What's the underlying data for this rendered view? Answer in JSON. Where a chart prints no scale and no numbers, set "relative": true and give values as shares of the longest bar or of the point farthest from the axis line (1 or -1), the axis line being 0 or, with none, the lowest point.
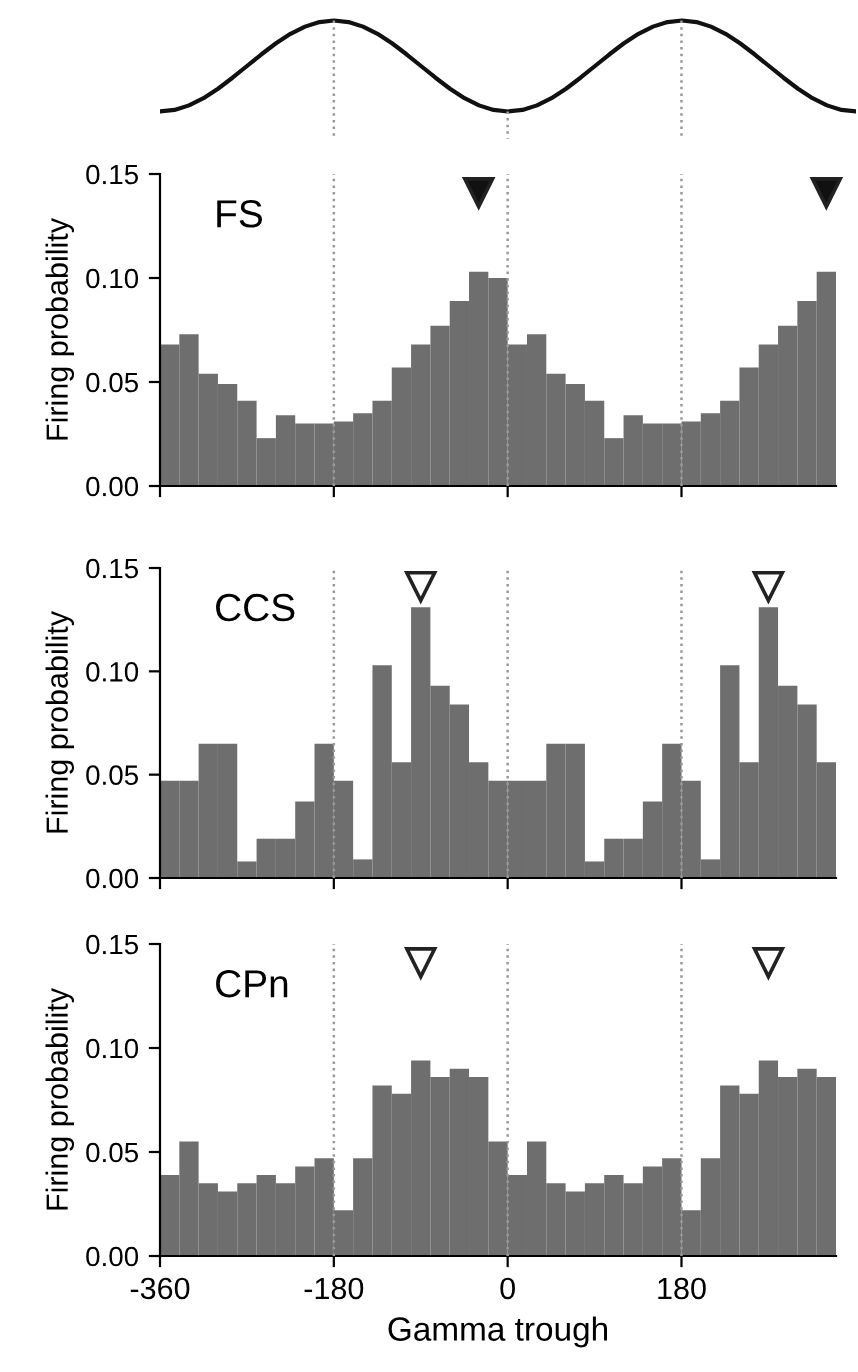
{
  "chart_data": [
    {
      "type": "line",
      "relative": true,
      "color": "#111111",
      "categories": [
        null,
        null,
        null,
        null,
        null,
        null,
        null,
        null,
        null,
        null,
        null,
        null,
        null,
        null,
        null,
        null,
        null,
        null,
        null,
        null,
        null,
        null,
        null,
        null,
        null,
        null,
        null,
        null,
        null,
        null,
        null,
        null,
        null,
        null,
        null,
        null,
        null,
        null,
        null,
        null,
        null,
        null,
        null,
        null,
        null,
        null,
        null,
        null,
        null
      ],
      "values": [
        0,
        0.017,
        0.067,
        0.146,
        0.25,
        0.371,
        0.5,
        0.629,
        0.75,
        0.854,
        0.933,
        0.983,
        1,
        0.983,
        0.933,
        0.854,
        0.75,
        0.629,
        0.5,
        0.371,
        0.25,
        0.146,
        0.067,
        0.017,
        0,
        0.017,
        0.067,
        0.146,
        0.25,
        0.371,
        0.5,
        0.629,
        0.75,
        0.854,
        0.933,
        0.983,
        1,
        0.983,
        0.933,
        0.854,
        0.75,
        0.629,
        0.5,
        0.371,
        0.25,
        0.146,
        0.067,
        0.017,
        0
      ]
    },
    {
      "type": "histogram",
      "title": "FS",
      "ylabel": "Firing probability",
      "color": "#6e6e6e",
      "bins": [
        -360,
        -340,
        -320,
        -300,
        -280,
        -260,
        -240,
        -220,
        -200,
        -180,
        -160,
        -140,
        -120,
        -100,
        -80,
        -60,
        -40,
        -20,
        0,
        20,
        40,
        60,
        80,
        100,
        120,
        140,
        160,
        180,
        200,
        220,
        240,
        260,
        280,
        300,
        320,
        340
      ],
      "values": [
        0.068,
        0.073,
        0.054,
        0.049,
        0.041,
        0.023,
        0.034,
        0.03,
        0.03,
        0.031,
        0.035,
        0.041,
        0.057,
        0.068,
        0.077,
        0.089,
        0.103,
        0.1,
        0.068,
        0.073,
        0.054,
        0.049,
        0.041,
        0.023,
        0.034,
        0.03,
        0.03,
        0.031,
        0.035,
        0.041,
        0.057,
        0.068,
        0.077,
        0.089,
        0.103
      ],
      "xlim": [
        -360,
        340
      ],
      "ylim": [
        0,
        0.15
      ],
      "xticks": [
        -360,
        -180,
        0,
        180
      ],
      "yticks": [
        {
          "value": 0,
          "label": "0.00"
        },
        {
          "value": 0.05,
          "label": "0.05"
        },
        {
          "value": 0.1,
          "label": "0.10"
        },
        {
          "value": 0.15,
          "label": "0.15"
        }
      ],
      "tick_labels": "y",
      "ref_lines": [
        {
          "axis": "x",
          "value": -180,
          "color": "#999999",
          "line_style": "dotted"
        },
        {
          "axis": "x",
          "value": 0,
          "color": "#999999",
          "line_style": "dotted"
        },
        {
          "axis": "x",
          "value": 180,
          "color": "#999999",
          "line_style": "dotted"
        }
      ]
    },
    {
      "type": "histogram",
      "title": "CCS",
      "ylabel": "Firing probability",
      "color": "#6e6e6e",
      "bins": [
        -360,
        -340,
        -320,
        -300,
        -280,
        -260,
        -240,
        -220,
        -200,
        -180,
        -160,
        -140,
        -120,
        -100,
        -80,
        -60,
        -40,
        -20,
        0,
        20,
        40,
        60,
        80,
        100,
        120,
        140,
        160,
        180,
        200,
        220,
        240,
        260,
        280,
        300,
        320,
        340
      ],
      "values": [
        0.047,
        0.047,
        0.065,
        0.065,
        0.008,
        0.019,
        0.019,
        0.037,
        0.065,
        0.047,
        0.009,
        0.103,
        0.056,
        0.131,
        0.093,
        0.084,
        0.056,
        0.047,
        0.047,
        0.047,
        0.065,
        0.065,
        0.008,
        0.019,
        0.019,
        0.037,
        0.065,
        0.047,
        0.009,
        0.103,
        0.056,
        0.131,
        0.093,
        0.084,
        0.056
      ],
      "xlim": [
        -360,
        340
      ],
      "ylim": [
        0,
        0.15
      ],
      "xticks": [
        -360,
        -180,
        0,
        180
      ],
      "yticks": [
        {
          "value": 0,
          "label": "0.00"
        },
        {
          "value": 0.05,
          "label": "0.05"
        },
        {
          "value": 0.1,
          "label": "0.10"
        },
        {
          "value": 0.15,
          "label": "0.15"
        }
      ],
      "tick_labels": "y",
      "ref_lines": [
        {
          "axis": "x",
          "value": -180,
          "color": "#999999",
          "line_style": "dotted"
        },
        {
          "axis": "x",
          "value": 0,
          "color": "#999999",
          "line_style": "dotted"
        },
        {
          "axis": "x",
          "value": 180,
          "color": "#999999",
          "line_style": "dotted"
        }
      ]
    },
    {
      "type": "histogram",
      "title": "CPn",
      "xlabel": "Gamma trough",
      "ylabel": "Firing probability",
      "color": "#6e6e6e",
      "bins": [
        -360,
        -340,
        -320,
        -300,
        -280,
        -260,
        -240,
        -220,
        -200,
        -180,
        -160,
        -140,
        -120,
        -100,
        -80,
        -60,
        -40,
        -20,
        0,
        20,
        40,
        60,
        80,
        100,
        120,
        140,
        160,
        180,
        200,
        220,
        240,
        260,
        280,
        300,
        320,
        340
      ],
      "values": [
        0.039,
        0.055,
        0.035,
        0.031,
        0.035,
        0.039,
        0.035,
        0.043,
        0.047,
        0.022,
        0.047,
        0.082,
        0.078,
        0.094,
        0.086,
        0.09,
        0.086,
        0.055,
        0.039,
        0.055,
        0.035,
        0.031,
        0.035,
        0.039,
        0.035,
        0.043,
        0.047,
        0.022,
        0.047,
        0.082,
        0.078,
        0.094,
        0.086,
        0.09,
        0.086
      ],
      "xlim": [
        -360,
        340
      ],
      "ylim": [
        0,
        0.15
      ],
      "xticks": [
        -360,
        -180,
        0,
        180
      ],
      "yticks": [
        {
          "value": 0,
          "label": "0.00"
        },
        {
          "value": 0.05,
          "label": "0.05"
        },
        {
          "value": 0.1,
          "label": "0.10"
        },
        {
          "value": 0.15,
          "label": "0.15"
        }
      ],
      "ref_lines": [
        {
          "axis": "x",
          "value": -180,
          "color": "#999999",
          "line_style": "dotted"
        },
        {
          "axis": "x",
          "value": 0,
          "color": "#999999",
          "line_style": "dotted"
        },
        {
          "axis": "x",
          "value": 180,
          "color": "#999999",
          "line_style": "dotted"
        }
      ]
    }
  ]
}
